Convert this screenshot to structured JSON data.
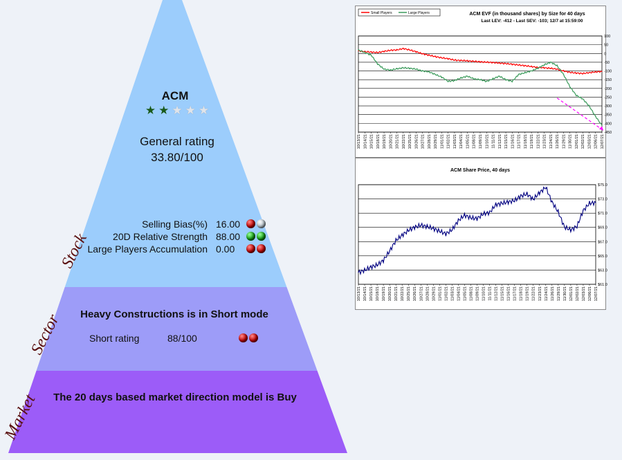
{
  "stock": {
    "side_label": "Stock",
    "ticker": "ACM",
    "stars": {
      "filled": 2,
      "total": 5
    },
    "general_rating_label": "General rating",
    "general_rating_value": "33.80/100",
    "metrics": [
      {
        "label": "Selling Bias(%)",
        "value": "16.00",
        "dots": [
          "red",
          "grey"
        ]
      },
      {
        "label": "20D Relative Strength",
        "value": "88.00",
        "dots": [
          "green",
          "green"
        ]
      },
      {
        "label": "Large Players Accumulation",
        "value": "0.00",
        "dots": [
          "red",
          "red"
        ]
      }
    ]
  },
  "sector": {
    "side_label": "Sector",
    "headline": "Heavy Constructions is in Short mode",
    "rating_label": "Short rating",
    "rating_value": "88/100",
    "dots": [
      "red",
      "red"
    ]
  },
  "market": {
    "side_label": "Market",
    "headline": "The 20 days based market direction model is Buy"
  },
  "colors": {
    "stock_band": "#9ccdfc",
    "sector_band": "#9d9cf8",
    "market_band": "#9c5cf8",
    "small_players": "#ff0000",
    "large_players": "#3a9a5a",
    "price_line": "#000080",
    "trend_arrow": "#ff00ff"
  },
  "chart_data": [
    {
      "type": "line",
      "title": "ACM EVF (in thousand shares) by Size for 40 days",
      "subtitle": "Last LEV: -412 - Last SEV: -103; 12/7 at 15:59:00",
      "legend": {
        "position": "top-left",
        "entries": [
          "Small Players",
          "Large Players"
        ]
      },
      "grid": true,
      "ylim": [
        -450,
        100
      ],
      "yticks": [
        "100",
        "50",
        "0",
        "-50",
        "-100",
        "-150",
        "-200",
        "-250",
        "-300",
        "-350",
        "-400",
        "-450"
      ],
      "x": [
        "10/13/21",
        "10/14/21",
        "10/15/21",
        "10/18/21",
        "10/19/21",
        "10/20/21",
        "10/21/21",
        "10/22/21",
        "10/25/21",
        "10/26/21",
        "10/27/21",
        "10/28/21",
        "10/29/21",
        "11/01/21",
        "11/02/21",
        "11/03/21",
        "11/04/21",
        "11/05/21",
        "11/08/21",
        "11/09/21",
        "11/10/21",
        "11/11/21",
        "11/12/21",
        "11/15/21",
        "11/16/21",
        "11/17/21",
        "11/18/21",
        "11/19/21",
        "11/22/21",
        "11/23/21",
        "11/24/21",
        "11/26/21",
        "11/29/21",
        "11/30/21",
        "12/01/21",
        "12/02/21",
        "12/03/21",
        "12/06/21",
        "12/07/21"
      ],
      "series": [
        {
          "name": "Small Players",
          "values": [
            15,
            10,
            8,
            5,
            12,
            18,
            20,
            28,
            20,
            10,
            -2,
            -10,
            -18,
            -25,
            -30,
            -38,
            -40,
            -42,
            -45,
            -48,
            -50,
            -52,
            -55,
            -58,
            -62,
            -66,
            -70,
            -75,
            -80,
            -82,
            -85,
            -90,
            -100,
            -108,
            -112,
            -115,
            -110,
            -106,
            -103
          ]
        },
        {
          "name": "Large Players",
          "values": [
            20,
            5,
            -10,
            -60,
            -90,
            -95,
            -88,
            -82,
            -85,
            -90,
            -100,
            -105,
            -120,
            -135,
            -160,
            -155,
            -140,
            -130,
            -145,
            -150,
            -160,
            -145,
            -130,
            -150,
            -160,
            -120,
            -110,
            -100,
            -85,
            -65,
            -50,
            -70,
            -120,
            -190,
            -240,
            -260,
            -300,
            -360,
            -412
          ]
        }
      ]
    },
    {
      "type": "line",
      "title": "ACM Share Price, 40 days",
      "grid": true,
      "ylim": [
        61,
        76
      ],
      "yticks": [
        "$75.0",
        "$73.0",
        "$71.0",
        "$69.0",
        "$67.0",
        "$65.0",
        "$63.0",
        "$61.0"
      ],
      "x": [
        "10/13/21",
        "10/14/21",
        "10/15/21",
        "10/18/21",
        "10/19/21",
        "10/20/21",
        "10/21/21",
        "10/22/21",
        "10/25/21",
        "10/26/21",
        "10/27/21",
        "10/28/21",
        "10/29/21",
        "11/01/21",
        "11/02/21",
        "11/03/21",
        "11/04/21",
        "11/05/21",
        "11/08/21",
        "11/09/21",
        "11/10/21",
        "11/11/21",
        "11/12/21",
        "11/15/21",
        "11/16/21",
        "11/17/21",
        "11/18/21",
        "11/19/21",
        "11/22/21",
        "11/23/21",
        "11/24/21",
        "11/26/21",
        "11/29/21",
        "11/30/21",
        "12/01/21",
        "12/02/21",
        "12/03/21",
        "12/06/21",
        "12/07/21"
      ],
      "series": [
        {
          "name": "ACM",
          "values": [
            62.8,
            63.1,
            63.6,
            63.9,
            64.6,
            66.0,
            67.6,
            68.4,
            69.1,
            69.6,
            69.9,
            69.7,
            69.4,
            69.0,
            68.6,
            69.2,
            70.6,
            71.4,
            71.0,
            70.9,
            71.6,
            71.8,
            73.0,
            73.2,
            73.4,
            73.6,
            74.3,
            74.6,
            73.8,
            74.8,
            75.6,
            73.4,
            71.9,
            69.6,
            69.2,
            69.7,
            72.1,
            73.2,
            73.3
          ]
        }
      ]
    }
  ]
}
